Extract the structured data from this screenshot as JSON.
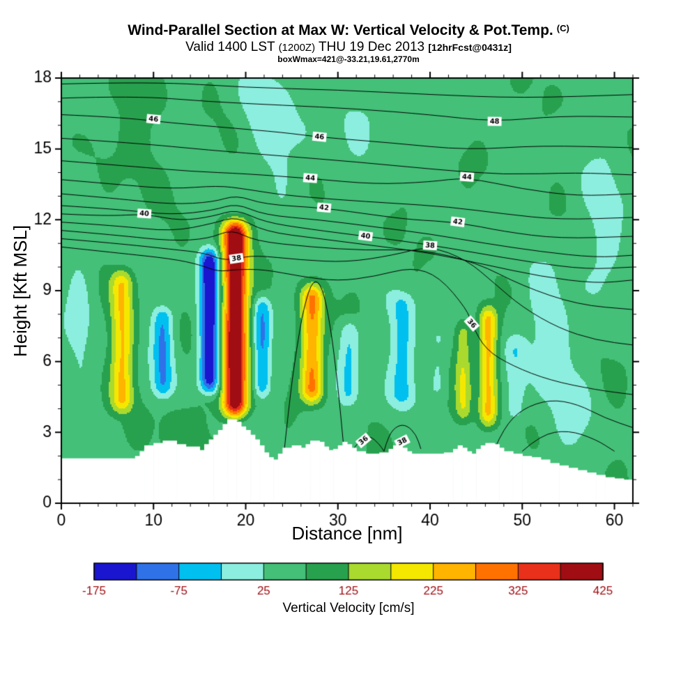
{
  "header": {
    "title_main": "Wind-Parallel Section at Max W: Vertical Velocity & Pot.Temp.",
    "title_unit": "(C)",
    "valid_prefix": "Valid 1400 LST",
    "valid_z": "(1200Z)",
    "valid_date": "THU 19 Dec 2013",
    "fcst_tag": "[12hrFcst@0431z]",
    "box_info": "boxWmax=421@-33.21,19.61,2770m"
  },
  "axes": {
    "x": {
      "label": "Distance [nm]",
      "min": 0,
      "max": 62,
      "major_ticks": [
        0,
        10,
        20,
        30,
        40,
        50,
        60
      ],
      "minor_step": 2
    },
    "y": {
      "label": "Height [Kft MSL]",
      "min": 0,
      "max": 18,
      "major_ticks": [
        0,
        3,
        6,
        9,
        12,
        15,
        18
      ],
      "minor_step": 1
    }
  },
  "colorbar": {
    "label": "Vertical Velocity [cm/s]",
    "min": -175,
    "max": 425,
    "step": 50,
    "tick_labels": [
      "-175",
      "-75",
      "25",
      "125",
      "225",
      "325",
      "425"
    ],
    "colors": [
      "#1a16cf",
      "#2f72e8",
      "#00c0f0",
      "#8ceede",
      "#44c078",
      "#28a14e",
      "#aada2e",
      "#f5e800",
      "#ffb400",
      "#ff7200",
      "#e8301a",
      "#a00d12"
    ]
  },
  "chart_data": {
    "type": "heatmap",
    "subtype": "filled-contour vertical cross-section with overlaid isentropes and terrain",
    "field_name": "Vertical Velocity",
    "field_units": "cm/s",
    "contour_field": "Potential Temperature",
    "contour_units": "C",
    "x_range": [
      0,
      62
    ],
    "y_range": [
      0,
      18
    ],
    "base_value": 62,
    "columns_format": "x_nm, peak_amplitude_cm_s, sigma_nm, z_base_kft, z_top_kft",
    "columns": [
      [
        6.6,
        165,
        0.85,
        3.4,
        10.3
      ],
      [
        11.0,
        -135,
        0.8,
        4.0,
        8.8
      ],
      [
        16.1,
        -240,
        0.8,
        4.2,
        11.2
      ],
      [
        18.85,
        400,
        0.95,
        3.2,
        12.4
      ],
      [
        21.8,
        -140,
        0.7,
        4.0,
        9.2
      ],
      [
        27.2,
        225,
        0.85,
        3.8,
        9.7
      ],
      [
        31.2,
        -95,
        0.8,
        3.6,
        8.2
      ],
      [
        37.0,
        -100,
        1.0,
        3.6,
        9.4
      ],
      [
        40.8,
        -55,
        0.7,
        4.0,
        8.0
      ],
      [
        43.6,
        110,
        0.65,
        3.0,
        8.2
      ],
      [
        46.3,
        180,
        0.7,
        2.8,
        8.8
      ],
      [
        49.2,
        -70,
        0.8,
        3.0,
        7.5
      ]
    ],
    "blobs_format": "x_nm, z_kft, sigx_nm, sigz_kft, amplitude_cm_s",
    "blobs": [
      [
        7,
        15.8,
        2.5,
        1.8,
        30
      ],
      [
        24,
        15.5,
        2.5,
        1.6,
        -55
      ],
      [
        33,
        16.5,
        2.0,
        1.2,
        -45
      ],
      [
        21,
        17.2,
        1.5,
        1.0,
        -40
      ],
      [
        53,
        7.5,
        2.5,
        2.0,
        -55
      ],
      [
        57,
        3.5,
        3.0,
        1.5,
        -50
      ],
      [
        59,
        12.0,
        2.0,
        2.5,
        -50
      ],
      [
        60,
        4.0,
        2.0,
        1.5,
        40
      ],
      [
        13,
        2.8,
        2.0,
        1.2,
        35
      ],
      [
        2,
        9.0,
        1.2,
        4.0,
        -45
      ]
    ],
    "terrain_format": "x_nm, surface_height_kft (step profile)",
    "terrain": [
      [
        0,
        1.9
      ],
      [
        8,
        2.0
      ],
      [
        8.5,
        2.2
      ],
      [
        9,
        2.45
      ],
      [
        10,
        2.55
      ],
      [
        11,
        2.65
      ],
      [
        12.5,
        2.5
      ],
      [
        13.5,
        2.4
      ],
      [
        15,
        2.25
      ],
      [
        15.5,
        2.5
      ],
      [
        16,
        2.7
      ],
      [
        16.5,
        2.9
      ],
      [
        17,
        3.1
      ],
      [
        17.5,
        3.35
      ],
      [
        18,
        3.55
      ],
      [
        19,
        3.45
      ],
      [
        19.5,
        3.25
      ],
      [
        20,
        3.1
      ],
      [
        20.5,
        2.9
      ],
      [
        21,
        2.7
      ],
      [
        21.5,
        2.45
      ],
      [
        22,
        2.15
      ],
      [
        22.5,
        1.95
      ],
      [
        23,
        1.85
      ],
      [
        23.5,
        2.1
      ],
      [
        24,
        2.35
      ],
      [
        25,
        2.45
      ],
      [
        26,
        2.35
      ],
      [
        26.5,
        2.5
      ],
      [
        27,
        2.65
      ],
      [
        28,
        2.6
      ],
      [
        28.5,
        2.4
      ],
      [
        29,
        2.25
      ],
      [
        29.5,
        2.3
      ],
      [
        30,
        2.45
      ],
      [
        30.5,
        2.6
      ],
      [
        31,
        2.5
      ],
      [
        31.5,
        2.35
      ],
      [
        32,
        2.2
      ],
      [
        33,
        2.1
      ],
      [
        34.5,
        2.15
      ],
      [
        35.5,
        2.3
      ],
      [
        36,
        2.45
      ],
      [
        37,
        2.35
      ],
      [
        37.5,
        2.2
      ],
      [
        38,
        2.1
      ],
      [
        41.5,
        2.15
      ],
      [
        42.5,
        2.3
      ],
      [
        43,
        2.45
      ],
      [
        43.5,
        2.35
      ],
      [
        44,
        2.2
      ],
      [
        44.5,
        2.1
      ],
      [
        45,
        2.3
      ],
      [
        45.5,
        2.45
      ],
      [
        46,
        2.55
      ],
      [
        47,
        2.5
      ],
      [
        47.5,
        2.35
      ],
      [
        48,
        2.2
      ],
      [
        49,
        2.1
      ],
      [
        50,
        2.0
      ],
      [
        51,
        1.95
      ],
      [
        52,
        1.85
      ],
      [
        53,
        1.7
      ],
      [
        54,
        1.6
      ],
      [
        55,
        1.5
      ],
      [
        56,
        1.4
      ],
      [
        57,
        1.3
      ],
      [
        58,
        1.2
      ],
      [
        59,
        1.1
      ],
      [
        60,
        1.05
      ],
      [
        61,
        1.0
      ],
      [
        62,
        1.0
      ]
    ],
    "isentropes": [
      {
        "pts": [
          [
            0,
            17.75
          ],
          [
            10,
            17.85
          ],
          [
            20,
            17.6
          ],
          [
            30,
            17.5
          ],
          [
            40,
            17.3
          ],
          [
            50,
            17.15
          ],
          [
            62,
            17.3
          ]
        ]
      },
      {
        "label": "48",
        "label_at": [
          47,
          16.15
        ],
        "pts": [
          [
            0,
            17.15
          ],
          [
            8,
            17.25
          ],
          [
            16,
            17.0
          ],
          [
            24,
            16.85
          ],
          [
            32,
            16.7
          ],
          [
            40,
            16.45
          ],
          [
            47,
            16.15
          ],
          [
            54,
            16.4
          ],
          [
            62,
            16.35
          ]
        ]
      },
      {
        "label": "46",
        "label_at": [
          10,
          16.25
        ],
        "label2": "46",
        "label2_at": [
          28,
          15.5
        ],
        "pts": [
          [
            0,
            16.45
          ],
          [
            6,
            16.35
          ],
          [
            12,
            16.1
          ],
          [
            18,
            15.9
          ],
          [
            24,
            15.7
          ],
          [
            28,
            15.5
          ],
          [
            36,
            15.25
          ],
          [
            44,
            14.95
          ],
          [
            52,
            15.15
          ],
          [
            62,
            15.05
          ]
        ]
      },
      {
        "pts": [
          [
            0,
            15.45
          ],
          [
            8,
            15.25
          ],
          [
            16,
            14.95
          ],
          [
            24,
            14.7
          ],
          [
            32,
            14.45
          ],
          [
            40,
            14.15
          ],
          [
            48,
            13.9
          ],
          [
            56,
            14.0
          ],
          [
            62,
            13.9
          ]
        ]
      },
      {
        "label": "44",
        "label_at": [
          27,
          13.75
        ],
        "label2": "44",
        "label2_at": [
          44,
          13.8
        ],
        "pts": [
          [
            0,
            14.5
          ],
          [
            8,
            14.25
          ],
          [
            14,
            14.05
          ],
          [
            20,
            13.95
          ],
          [
            27,
            13.75
          ],
          [
            34,
            13.5
          ],
          [
            40,
            13.6
          ],
          [
            44,
            13.8
          ],
          [
            50,
            13.3
          ],
          [
            56,
            13.0
          ],
          [
            62,
            13.1
          ]
        ]
      },
      {
        "pts": [
          [
            0,
            13.7
          ],
          [
            6,
            13.5
          ],
          [
            12,
            13.3
          ],
          [
            17,
            13.45
          ],
          [
            20,
            13.3
          ],
          [
            24,
            13.05
          ],
          [
            30,
            12.85
          ],
          [
            36,
            12.7
          ],
          [
            42,
            12.55
          ],
          [
            48,
            12.25
          ],
          [
            54,
            12.0
          ],
          [
            62,
            12.1
          ]
        ]
      },
      {
        "label": "42",
        "label_at": [
          28.5,
          12.5
        ],
        "label2": "42",
        "label2_at": [
          43,
          11.9
        ],
        "pts": [
          [
            0,
            13.1
          ],
          [
            6,
            12.9
          ],
          [
            12,
            12.65
          ],
          [
            16.5,
            12.75
          ],
          [
            19,
            13.05
          ],
          [
            22,
            12.65
          ],
          [
            28.5,
            12.5
          ],
          [
            34,
            12.2
          ],
          [
            38,
            12.0
          ],
          [
            43,
            11.9
          ],
          [
            48,
            11.5
          ],
          [
            54,
            11.2
          ],
          [
            62,
            11.3
          ]
        ]
      },
      {
        "pts": [
          [
            0,
            12.6
          ],
          [
            6,
            12.45
          ],
          [
            12,
            12.2
          ],
          [
            16.5,
            12.4
          ],
          [
            19,
            12.7
          ],
          [
            22,
            12.2
          ],
          [
            28,
            12.0
          ],
          [
            34,
            11.7
          ],
          [
            40,
            11.4
          ],
          [
            46,
            11.0
          ],
          [
            52,
            10.65
          ],
          [
            58,
            10.4
          ],
          [
            62,
            10.5
          ]
        ]
      },
      {
        "label": "40",
        "label_at": [
          9,
          12.25
        ],
        "label2": "40",
        "label2_at": [
          33,
          11.3
        ],
        "pts": [
          [
            0,
            12.25
          ],
          [
            5,
            12.15
          ],
          [
            9,
            12.25
          ],
          [
            13,
            11.95
          ],
          [
            16.5,
            12.15
          ],
          [
            19,
            12.45
          ],
          [
            22,
            11.9
          ],
          [
            27,
            11.6
          ],
          [
            33,
            11.3
          ],
          [
            39,
            11.0
          ],
          [
            45,
            10.6
          ],
          [
            51,
            10.2
          ],
          [
            57,
            9.9
          ],
          [
            62,
            10.0
          ]
        ]
      },
      {
        "pts": [
          [
            0,
            11.9
          ],
          [
            6,
            11.75
          ],
          [
            12,
            11.5
          ],
          [
            16.5,
            11.85
          ],
          [
            19,
            12.15
          ],
          [
            22,
            11.5
          ],
          [
            28,
            11.2
          ],
          [
            34,
            10.9
          ],
          [
            40,
            10.6
          ],
          [
            46,
            10.1
          ],
          [
            52,
            9.6
          ],
          [
            58,
            9.3
          ],
          [
            62,
            9.45
          ]
        ]
      },
      {
        "pts": [
          [
            0,
            11.55
          ],
          [
            6,
            11.35
          ],
          [
            12,
            11.1
          ],
          [
            16,
            11.2
          ],
          [
            18.5,
            11.6
          ],
          [
            21,
            11.1
          ],
          [
            27,
            10.85
          ],
          [
            33,
            10.7
          ],
          [
            39,
            10.75
          ],
          [
            45,
            10.2
          ],
          [
            50,
            9.2
          ],
          [
            56,
            8.4
          ],
          [
            62,
            8.2
          ]
        ]
      },
      {
        "label": "38",
        "label_at": [
          19,
          10.35
        ],
        "label2": "38",
        "label2_at": [
          40,
          10.9
        ],
        "pts": [
          [
            0,
            11.2
          ],
          [
            6,
            11.0
          ],
          [
            12,
            10.75
          ],
          [
            15.5,
            10.6
          ],
          [
            17.5,
            10.3
          ],
          [
            19,
            10.35
          ],
          [
            21,
            10.5
          ],
          [
            26,
            10.3
          ],
          [
            31,
            10.2
          ],
          [
            36,
            10.5
          ],
          [
            40,
            10.9
          ],
          [
            44,
            10.3
          ],
          [
            47,
            9.3
          ],
          [
            50,
            8.3
          ],
          [
            54,
            7.4
          ],
          [
            58,
            6.9
          ],
          [
            62,
            6.7
          ]
        ]
      },
      {
        "label": "36",
        "label_at": [
          44.5,
          7.6
        ],
        "pts": [
          [
            0,
            10.85
          ],
          [
            6,
            10.6
          ],
          [
            12,
            10.35
          ],
          [
            15,
            10.1
          ],
          [
            17,
            9.8
          ],
          [
            19,
            9.9
          ],
          [
            22,
            9.9
          ],
          [
            26,
            9.6
          ],
          [
            30,
            9.4
          ],
          [
            34,
            9.6
          ],
          [
            38,
            10.0
          ],
          [
            41,
            9.6
          ],
          [
            44,
            8.2
          ],
          [
            44.5,
            7.6
          ],
          [
            46,
            6.5
          ],
          [
            49,
            5.8
          ],
          [
            53,
            5.2
          ],
          [
            58,
            4.8
          ],
          [
            62,
            4.6
          ]
        ]
      },
      {
        "pts": [
          [
            24.2,
            2.3
          ],
          [
            24.8,
            4.5
          ],
          [
            25.5,
            6.5
          ],
          [
            26.3,
            8.3
          ],
          [
            27.3,
            9.5
          ],
          [
            28.3,
            9.2
          ],
          [
            29.2,
            7.5
          ],
          [
            30,
            5.0
          ],
          [
            30.6,
            2.5
          ]
        ]
      },
      {
        "label": "38",
        "label_at": [
          37,
          2.6
        ],
        "pts": [
          [
            35,
            2.2
          ],
          [
            35.5,
            2.9
          ],
          [
            36.5,
            3.3
          ],
          [
            37.5,
            3.3
          ],
          [
            38.5,
            2.9
          ],
          [
            39,
            2.3
          ]
        ]
      },
      {
        "label": "36",
        "label_at": [
          32.8,
          2.65
        ],
        "pts": [
          [
            31.5,
            2.2
          ],
          [
            32.5,
            2.75
          ],
          [
            33.5,
            2.85
          ],
          [
            34.5,
            2.5
          ],
          [
            35,
            2.2
          ]
        ]
      },
      {
        "pts": [
          [
            47,
            2.3
          ],
          [
            48,
            3.2
          ],
          [
            50,
            4.0
          ],
          [
            53,
            4.4
          ],
          [
            56,
            4.2
          ],
          [
            59,
            3.6
          ],
          [
            62,
            3.2
          ]
        ]
      },
      {
        "pts": [
          [
            50,
            2.2
          ],
          [
            52,
            2.9
          ],
          [
            55,
            3.1
          ],
          [
            58,
            2.7
          ],
          [
            60,
            2.2
          ]
        ]
      }
    ]
  }
}
